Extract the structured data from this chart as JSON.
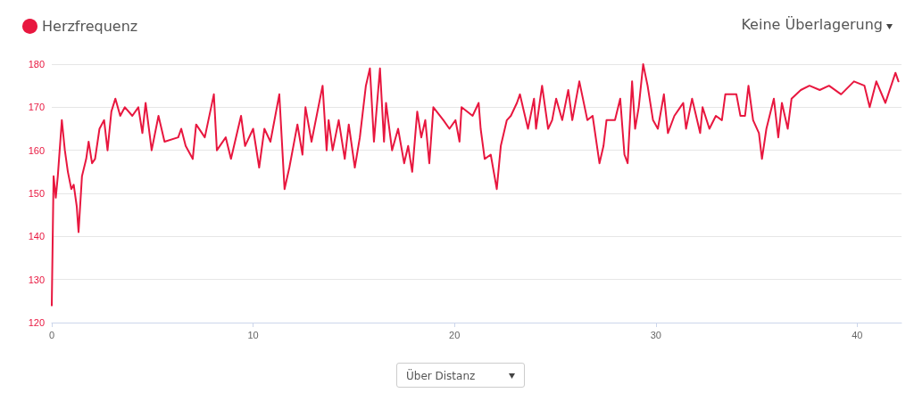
{
  "chart_data": {
    "type": "line",
    "legend": "top left",
    "grid": "y",
    "marker": "none",
    "line_style": "solid",
    "annotations": [
      "Keine Überlagerung",
      "Über Distanz"
    ],
    "xlim": [
      0,
      42.2
    ],
    "xticks": [
      0,
      10,
      20,
      30,
      40
    ],
    "ylim": [
      120,
      180
    ],
    "yticks": [
      120,
      130,
      140,
      150,
      160,
      170,
      180
    ],
    "series": [
      {
        "name": "Herzfrequenz",
        "color": "#e8173f",
        "x": [
          0,
          0.09,
          0.2,
          0.3,
          0.5,
          0.65,
          0.8,
          0.97,
          1.09,
          1.24,
          1.33,
          1.5,
          1.71,
          1.83,
          2.0,
          2.15,
          2.37,
          2.6,
          2.77,
          2.96,
          3.16,
          3.4,
          3.63,
          4.0,
          4.3,
          4.5,
          4.66,
          4.88,
          4.96,
          5.3,
          5.6,
          6.28,
          6.43,
          6.65,
          7.0,
          7.17,
          7.6,
          8.05,
          8.2,
          8.64,
          8.9,
          9.4,
          9.6,
          10.0,
          10.3,
          10.56,
          10.86,
          11.3,
          11.56,
          11.8,
          12.2,
          12.45,
          12.6,
          12.9,
          13.45,
          13.65,
          13.75,
          13.95,
          14.25,
          14.55,
          14.75,
          15.05,
          15.3,
          15.6,
          15.8,
          16.0,
          16.3,
          16.5,
          16.6,
          16.9,
          17.2,
          17.5,
          17.7,
          17.9,
          18.15,
          18.35,
          18.55,
          18.75,
          18.95,
          19.45,
          19.75,
          20.05,
          20.25,
          20.35,
          20.9,
          21.2,
          21.3,
          21.5,
          21.8,
          22.1,
          22.3,
          22.6,
          22.8,
          23.1,
          23.25,
          23.45,
          23.65,
          23.95,
          24.05,
          24.35,
          24.65,
          24.85,
          25.05,
          25.35,
          25.65,
          25.85,
          26.2,
          26.6,
          26.86,
          27.2,
          27.4,
          27.55,
          27.97,
          28.23,
          28.44,
          28.6,
          28.82,
          28.97,
          29.15,
          29.37,
          29.59,
          29.86,
          30.1,
          30.4,
          30.6,
          30.92,
          31.36,
          31.5,
          31.8,
          32.2,
          32.32,
          32.66,
          32.98,
          33.28,
          33.45,
          34.0,
          34.2,
          34.43,
          34.6,
          34.83,
          35.12,
          35.27,
          35.49,
          35.86,
          36.08,
          36.26,
          36.55,
          36.74,
          37.2,
          37.63,
          38.14,
          38.6,
          39.2,
          39.84,
          40.36,
          40.62,
          40.95,
          41.4,
          41.9,
          42.05
        ],
        "values": [
          124,
          154,
          149,
          154,
          167,
          160,
          155,
          151,
          152,
          147,
          141,
          154,
          158,
          162,
          157,
          158,
          165,
          167,
          160,
          169,
          172,
          168,
          170,
          168,
          170,
          164,
          171,
          163,
          160,
          168,
          162,
          163,
          165,
          161,
          158,
          166,
          163,
          173,
          160,
          163,
          158,
          168,
          161,
          165,
          156,
          165,
          162,
          173,
          151,
          156,
          166,
          159,
          170,
          162,
          175,
          160,
          167,
          160,
          167,
          158,
          166,
          156,
          163,
          175,
          179,
          162,
          179,
          162,
          171,
          160,
          165,
          157,
          161,
          155,
          169,
          163,
          167,
          157,
          170,
          167,
          165,
          167,
          162,
          170,
          168,
          171,
          165,
          158,
          159,
          151,
          161,
          167,
          168,
          171,
          173,
          169,
          165,
          172,
          165,
          175,
          165,
          167,
          172,
          167,
          174,
          167,
          176,
          167,
          168,
          157,
          161,
          167,
          167,
          172,
          159,
          157,
          176,
          165,
          170,
          180,
          175,
          167,
          165,
          173,
          164,
          168,
          171,
          165,
          172,
          164,
          170,
          165,
          168,
          167,
          173,
          173,
          168,
          168,
          175,
          167,
          164,
          158,
          165,
          172,
          163,
          171,
          165,
          172,
          174,
          175,
          174,
          175,
          173,
          176,
          175,
          170,
          176,
          171,
          178,
          176
        ]
      }
    ]
  }
}
